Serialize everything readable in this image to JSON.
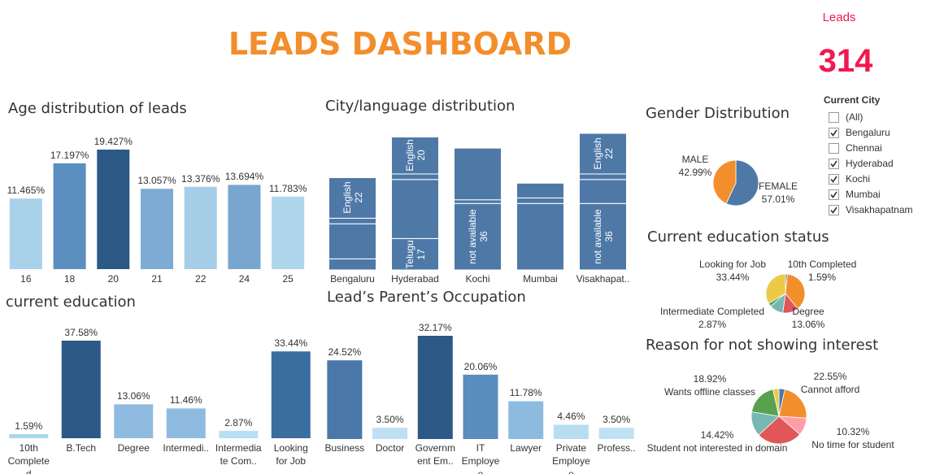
{
  "header": {
    "title": "LEADS DASHBOARD"
  },
  "kpi": {
    "label": "Leads",
    "value": 314
  },
  "filter": {
    "title": "Current City",
    "options": [
      {
        "label": "(All)",
        "checked": false
      },
      {
        "label": "Bengaluru",
        "checked": true
      },
      {
        "label": "Chennai",
        "checked": false
      },
      {
        "label": "Hyderabad",
        "checked": true
      },
      {
        "label": "Kochi",
        "checked": true
      },
      {
        "label": "Mumbai",
        "checked": true
      },
      {
        "label": "Visakhapatnam",
        "checked": true
      }
    ]
  },
  "chart_data": [
    {
      "type": "bar",
      "title": "Age distribution of leads",
      "categories": [
        "16",
        "18",
        "20",
        "21",
        "22",
        "24",
        "25"
      ],
      "values": [
        11.465,
        17.197,
        19.427,
        13.057,
        13.376,
        13.694,
        11.783
      ],
      "value_labels": [
        "11.465%",
        "17.197%",
        "19.427%",
        "13.057%",
        "13.376%",
        "13.694%",
        "11.783%"
      ],
      "colors": [
        "#a9d1ea",
        "#5b8fbf",
        "#2c5985",
        "#7eabd3",
        "#a6cde8",
        "#78a6cf",
        "#b0d6ee"
      ]
    },
    {
      "type": "stacked_bar",
      "title": "City/language distribution",
      "categories": [
        "Bengaluru",
        "Hyderabad",
        "Kochi",
        "Mumbai",
        "Visakhapat.."
      ],
      "stacks": [
        [
          {
            "value": 6
          },
          {
            "value": 19
          },
          {
            "value": 3
          },
          {
            "name": "English",
            "value": 22
          }
        ],
        [
          {
            "name": "Telugu",
            "value": 17
          },
          {
            "value": 32
          },
          {
            "value": 3
          },
          {
            "name": "English",
            "value": 20
          }
        ],
        [
          {
            "name": "not available",
            "value": 36
          },
          {
            "value": 2
          },
          {
            "value": 28
          }
        ],
        [
          {
            "value": 36
          },
          {
            "value": 3
          },
          {
            "value": 8
          }
        ],
        [
          {
            "name": "not available",
            "value": 36
          },
          {
            "value": 13
          },
          {
            "value": 3
          },
          {
            "name": "English",
            "value": 22
          }
        ]
      ],
      "color": "#4e79a7"
    },
    {
      "type": "pie",
      "title": "Gender Distribution",
      "categories": [
        "FEMALE",
        "MALE"
      ],
      "values": [
        57.01,
        42.99
      ],
      "value_labels": [
        "57.01%",
        "42.99%"
      ],
      "colors": [
        "#4e79a7",
        "#f28e2b"
      ]
    },
    {
      "type": "pie",
      "title": "Current education status",
      "categories": [
        "10th Completed",
        null,
        "Degree",
        null,
        "Intermediate Completed",
        "Looking for Job"
      ],
      "values": [
        1.59,
        37.58,
        13.06,
        11.46,
        2.87,
        33.44
      ],
      "value_labels": [
        "1.59%",
        null,
        "13.06%",
        null,
        "2.87%",
        "33.44%"
      ],
      "colors": [
        "#4e79a7",
        "#f28e2b",
        "#e15759",
        "#76b7b2",
        "#59a14f",
        "#edc948"
      ]
    },
    {
      "type": "pie",
      "title": "Reason for not showing interest",
      "categories": [
        null,
        "Cannot afford",
        "No time for student",
        null,
        "Student not interested in domain",
        "Wants offline classes",
        null
      ],
      "values": [
        3.5,
        22.55,
        10.32,
        26.79,
        14.42,
        18.92,
        3.5
      ],
      "value_labels": [
        null,
        "22.55%",
        "10.32%",
        null,
        "14.42%",
        "18.92%",
        null
      ],
      "colors": [
        "#4e79a7",
        "#f28e2b",
        "#ff9da7",
        "#e15759",
        "#76b7b2",
        "#59a14f",
        "#edc948"
      ]
    },
    {
      "type": "bar",
      "title": "current education",
      "categories": [
        "10th Completed",
        "B.Tech",
        "Degree",
        "Intermedi..",
        "Intermediate Com..",
        "Looking for Job"
      ],
      "values": [
        1.59,
        37.58,
        13.06,
        11.46,
        2.87,
        33.44
      ],
      "value_labels": [
        "1.59%",
        "37.58%",
        "13.06%",
        "11.46%",
        "2.87%",
        "33.44%"
      ],
      "colors": [
        "#a9d6ec",
        "#2c5985",
        "#8fbbe0",
        "#8fbbe0",
        "#b9dff2",
        "#3b6d9e"
      ]
    },
    {
      "type": "bar",
      "title": "Lead’s Parent’s Occupation",
      "categories": [
        "Business",
        "Doctor",
        "Government Em..",
        "IT Employee",
        "Lawyer",
        "Private Employee",
        "Profess.."
      ],
      "values": [
        24.52,
        3.5,
        32.17,
        20.06,
        11.78,
        4.46,
        3.5
      ],
      "value_labels": [
        "24.52%",
        "3.50%",
        "32.17%",
        "20.06%",
        "11.78%",
        "4.46%",
        "3.50%"
      ],
      "colors": [
        "#4a78a8",
        "#bfe0f2",
        "#2c5985",
        "#5a8cbe",
        "#8dbbe0",
        "#b8dcf0",
        "#c0e0f3"
      ]
    }
  ]
}
